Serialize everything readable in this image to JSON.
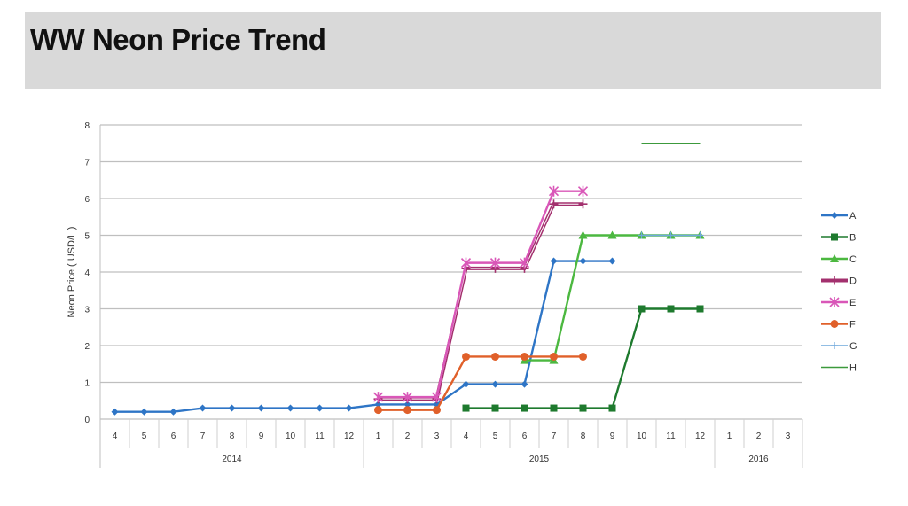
{
  "chart_data": {
    "type": "line",
    "title": "WW Neon Price Trend",
    "xlabel": "",
    "ylabel": "Neon Price ( USD/L )",
    "ylim": [
      0,
      8
    ],
    "yticks": [
      0,
      1,
      2,
      3,
      4,
      5,
      6,
      7,
      8
    ],
    "grid": true,
    "legend_position": "right",
    "years": [
      {
        "label": "2014",
        "months": [
          "4",
          "5",
          "6",
          "7",
          "8",
          "9",
          "10",
          "11",
          "12"
        ]
      },
      {
        "label": "2015",
        "months": [
          "1",
          "2",
          "3",
          "4",
          "5",
          "6",
          "7",
          "8",
          "9",
          "10",
          "11",
          "12"
        ]
      },
      {
        "label": "2016",
        "months": [
          "1",
          "2",
          "3"
        ]
      }
    ],
    "series": [
      {
        "name": "A",
        "color": "#2e75c6",
        "marker": "diamond",
        "values": [
          0.2,
          0.2,
          0.2,
          0.3,
          0.3,
          0.3,
          0.3,
          0.3,
          0.3,
          0.4,
          0.4,
          0.4,
          0.95,
          0.95,
          0.95,
          4.3,
          4.3,
          4.3,
          null,
          null,
          null,
          null,
          null,
          null
        ]
      },
      {
        "name": "B",
        "color": "#1e7a2e",
        "marker": "square",
        "values": [
          null,
          null,
          null,
          null,
          null,
          null,
          null,
          null,
          null,
          null,
          null,
          null,
          0.3,
          0.3,
          0.3,
          0.3,
          0.3,
          0.3,
          3.0,
          3.0,
          3.0,
          null,
          null,
          null
        ]
      },
      {
        "name": "C",
        "color": "#4cb840",
        "marker": "triangle",
        "values": [
          null,
          null,
          null,
          null,
          null,
          null,
          null,
          null,
          null,
          null,
          null,
          null,
          null,
          null,
          1.6,
          1.6,
          5.0,
          5.0,
          5.0,
          5.0,
          5.0,
          null,
          null,
          null
        ]
      },
      {
        "name": "D",
        "color": "#a3306e",
        "marker": "bar",
        "values": [
          null,
          null,
          null,
          null,
          null,
          null,
          null,
          null,
          null,
          0.55,
          0.55,
          0.55,
          4.1,
          4.1,
          4.1,
          5.85,
          5.85,
          null,
          null,
          null,
          null,
          null,
          null,
          null
        ]
      },
      {
        "name": "E",
        "color": "#d957b8",
        "marker": "star",
        "values": [
          null,
          null,
          null,
          null,
          null,
          null,
          null,
          null,
          null,
          0.6,
          0.6,
          0.6,
          4.25,
          4.25,
          4.25,
          6.2,
          6.2,
          null,
          null,
          null,
          null,
          null,
          null,
          null
        ]
      },
      {
        "name": "F",
        "color": "#e0602a",
        "marker": "circle",
        "values": [
          null,
          null,
          null,
          null,
          null,
          null,
          null,
          null,
          null,
          0.25,
          0.25,
          0.25,
          1.7,
          1.7,
          1.7,
          1.7,
          1.7,
          null,
          null,
          null,
          null,
          null,
          null,
          null
        ]
      },
      {
        "name": "G",
        "color": "#6fa8dc",
        "marker": "plus",
        "values": [
          null,
          null,
          null,
          null,
          null,
          null,
          null,
          null,
          null,
          null,
          null,
          null,
          null,
          null,
          null,
          null,
          null,
          null,
          5.0,
          5.0,
          5.0,
          null,
          null,
          null
        ]
      },
      {
        "name": "H",
        "color": "#3c9a3c",
        "marker": "none",
        "values": [
          null,
          null,
          null,
          null,
          null,
          null,
          null,
          null,
          null,
          null,
          null,
          null,
          null,
          null,
          null,
          null,
          null,
          null,
          7.5,
          7.5,
          7.5,
          null,
          null,
          null
        ]
      }
    ]
  }
}
